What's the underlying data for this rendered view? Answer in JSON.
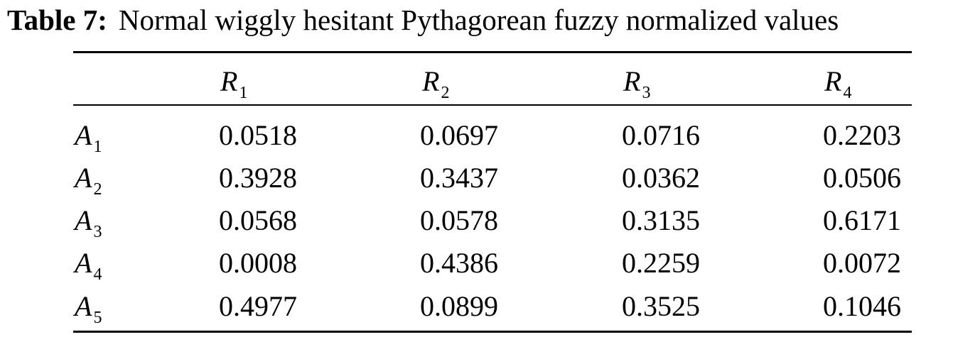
{
  "caption": {
    "label": "Table 7:",
    "text": "Normal wiggly hesitant Pythagorean fuzzy normalized values"
  },
  "table": {
    "columns": [
      {
        "symbol": "R",
        "index": "1"
      },
      {
        "symbol": "R",
        "index": "2"
      },
      {
        "symbol": "R",
        "index": "3"
      },
      {
        "symbol": "R",
        "index": "4"
      }
    ],
    "rows": [
      {
        "symbol": "A",
        "index": "1",
        "values": [
          "0.0518",
          "0.0697",
          "0.0716",
          "0.2203"
        ]
      },
      {
        "symbol": "A",
        "index": "2",
        "values": [
          "0.3928",
          "0.3437",
          "0.0362",
          "0.0506"
        ]
      },
      {
        "symbol": "A",
        "index": "3",
        "values": [
          "0.0568",
          "0.0578",
          "0.3135",
          "0.6171"
        ]
      },
      {
        "symbol": "A",
        "index": "4",
        "values": [
          "0.0008",
          "0.4386",
          "0.2259",
          "0.0072"
        ]
      },
      {
        "symbol": "A",
        "index": "5",
        "values": [
          "0.4977",
          "0.0899",
          "0.3525",
          "0.1046"
        ]
      }
    ]
  }
}
